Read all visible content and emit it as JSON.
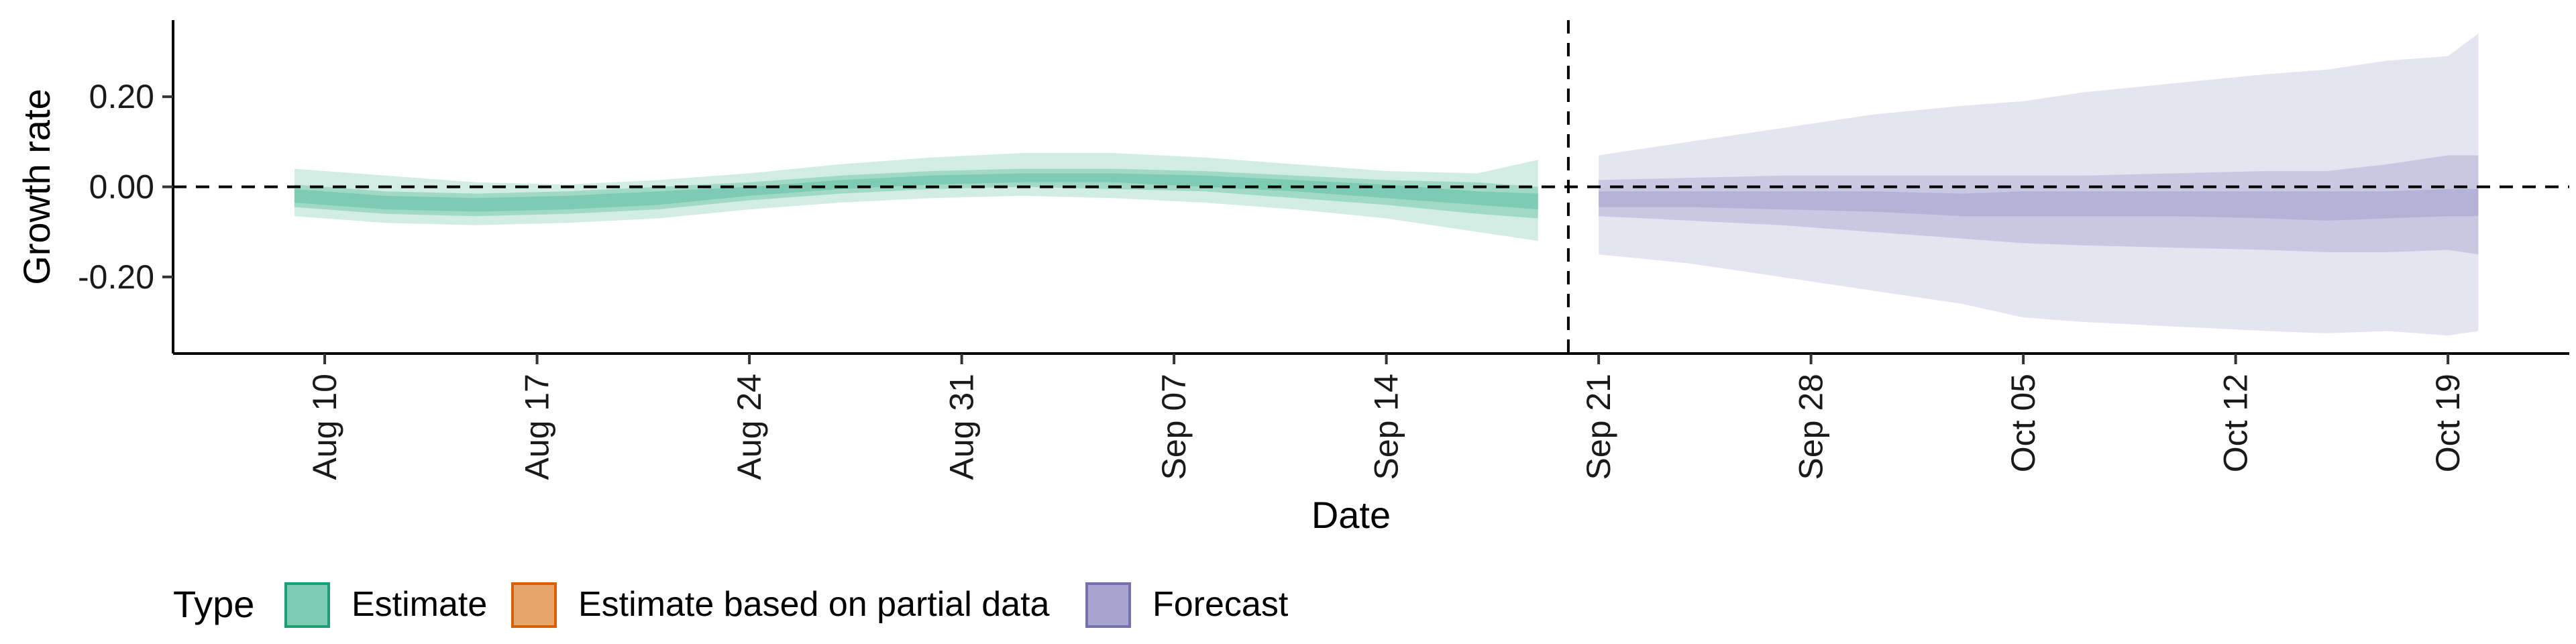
{
  "chart_data": {
    "type": "area",
    "xlabel": "Date",
    "ylabel": "Growth rate",
    "x_ticks": [
      "Aug 10",
      "Aug 17",
      "Aug 24",
      "Aug 31",
      "Sep 07",
      "Sep 14",
      "Sep 21",
      "Sep 28",
      "Oct 05",
      "Oct 12",
      "Oct 19"
    ],
    "y_ticks": [
      "0.20",
      "0.00",
      "-0.20"
    ],
    "y_tick_values": [
      0.2,
      0.0,
      -0.2
    ],
    "ylim": [
      -0.37,
      0.37
    ],
    "xlim": [
      "2020-08-05",
      "2020-10-23"
    ],
    "hline": 0.0,
    "vline": "2020-09-20",
    "legend": {
      "title": "Type",
      "position": "bottom",
      "entries": [
        {
          "label": "Estimate",
          "fill": "#66c2a5",
          "stroke": "#1b9e77"
        },
        {
          "label": "Estimate based on partial data",
          "fill": "#e6a76b",
          "stroke": "#d95f02"
        },
        {
          "label": "Forecast",
          "fill": "#a8a4d0",
          "stroke": "#7570b3"
        }
      ]
    },
    "series": [
      {
        "name": "Estimate",
        "color": "#66c2a5",
        "x": [
          "2020-08-09",
          "2020-08-12",
          "2020-08-15",
          "2020-08-18",
          "2020-08-21",
          "2020-08-24",
          "2020-08-27",
          "2020-08-30",
          "2020-09-02",
          "2020-09-05",
          "2020-09-08",
          "2020-09-11",
          "2020-09-14",
          "2020-09-17",
          "2020-09-19"
        ],
        "median": [
          -0.02,
          -0.035,
          -0.04,
          -0.035,
          -0.025,
          -0.01,
          0.005,
          0.015,
          0.02,
          0.02,
          0.015,
          0.005,
          -0.01,
          -0.025,
          -0.03
        ],
        "lower_20": [
          -0.035,
          -0.05,
          -0.055,
          -0.05,
          -0.04,
          -0.02,
          -0.005,
          0.005,
          0.01,
          0.01,
          0.0,
          -0.01,
          -0.025,
          -0.04,
          -0.05
        ],
        "upper_20": [
          -0.005,
          -0.02,
          -0.025,
          -0.02,
          -0.01,
          0.0,
          0.015,
          0.025,
          0.03,
          0.03,
          0.025,
          0.015,
          0.005,
          -0.01,
          -0.015
        ],
        "lower_50": [
          -0.045,
          -0.06,
          -0.065,
          -0.06,
          -0.05,
          -0.03,
          -0.015,
          -0.005,
          0.0,
          -0.005,
          -0.01,
          -0.025,
          -0.04,
          -0.06,
          -0.07
        ],
        "upper_50": [
          0.005,
          -0.01,
          -0.015,
          -0.01,
          0.0,
          0.01,
          0.025,
          0.035,
          0.04,
          0.04,
          0.035,
          0.025,
          0.015,
          0.01,
          0.0
        ],
        "lower_90": [
          -0.065,
          -0.08,
          -0.085,
          -0.08,
          -0.07,
          -0.05,
          -0.035,
          -0.025,
          -0.02,
          -0.025,
          -0.035,
          -0.05,
          -0.07,
          -0.1,
          -0.12
        ],
        "upper_90": [
          0.04,
          0.025,
          0.01,
          0.005,
          0.015,
          0.03,
          0.05,
          0.065,
          0.075,
          0.075,
          0.065,
          0.05,
          0.035,
          0.03,
          0.06
        ]
      },
      {
        "name": "Forecast",
        "color": "#a8a4d0",
        "x": [
          "2020-09-21",
          "2020-09-24",
          "2020-09-27",
          "2020-09-30",
          "2020-10-03",
          "2020-10-05",
          "2020-10-07",
          "2020-10-10",
          "2020-10-13",
          "2020-10-15",
          "2020-10-17",
          "2020-10-19",
          "2020-10-20"
        ],
        "median": [
          -0.03,
          -0.03,
          -0.035,
          -0.04,
          -0.045,
          -0.045,
          -0.05,
          -0.05,
          -0.05,
          -0.055,
          -0.05,
          -0.045,
          -0.04
        ],
        "lower_20": [
          -0.045,
          -0.045,
          -0.05,
          -0.055,
          -0.065,
          -0.065,
          -0.065,
          -0.065,
          -0.07,
          -0.075,
          -0.07,
          -0.065,
          -0.065
        ],
        "upper_20": [
          -0.01,
          -0.01,
          -0.01,
          -0.01,
          -0.015,
          -0.01,
          -0.01,
          -0.01,
          -0.01,
          -0.01,
          -0.01,
          -0.005,
          -0.005
        ],
        "lower_50": [
          -0.065,
          -0.075,
          -0.085,
          -0.1,
          -0.115,
          -0.125,
          -0.13,
          -0.135,
          -0.14,
          -0.145,
          -0.145,
          -0.14,
          -0.15
        ],
        "upper_50": [
          0.015,
          0.02,
          0.025,
          0.025,
          0.025,
          0.025,
          0.025,
          0.03,
          0.035,
          0.035,
          0.05,
          0.07,
          0.07
        ],
        "lower_90": [
          -0.15,
          -0.17,
          -0.2,
          -0.23,
          -0.26,
          -0.29,
          -0.3,
          -0.31,
          -0.32,
          -0.325,
          -0.32,
          -0.33,
          -0.32
        ],
        "upper_90": [
          0.07,
          0.1,
          0.13,
          0.16,
          0.18,
          0.19,
          0.21,
          0.23,
          0.25,
          0.26,
          0.28,
          0.29,
          0.34
        ]
      }
    ]
  }
}
